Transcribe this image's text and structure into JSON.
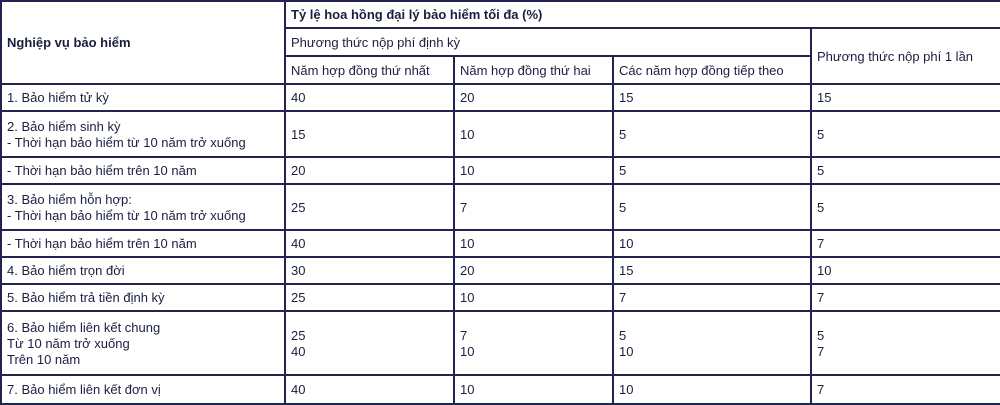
{
  "header": {
    "col_business": "Nghiệp vụ bảo hiểm",
    "col_rate": "Tỷ lệ hoa hồng đại lý bảo hiểm tối đa (%)",
    "periodic": "Phương thức nộp phí định kỳ",
    "single": "Phương thức nộp phí 1 lần",
    "year1": "Năm hợp đồng thứ nhất",
    "year2": "Năm hợp đồng thứ hai",
    "later": "Các năm hợp đồng tiếp theo"
  },
  "rows": [
    {
      "label": "1. Bảo hiểm tử kỳ",
      "y1": "40",
      "y2": "20",
      "later": "15",
      "single": "15"
    },
    {
      "label": "2. Bảo hiểm sinh kỳ\n- Thời hạn bảo hiểm từ 10 năm trở xuống",
      "y1": "15",
      "y2": "10",
      "later": "5",
      "single": "5"
    },
    {
      "label": "- Thời hạn bảo hiểm trên 10 năm",
      "y1": "20",
      "y2": "10",
      "later": "5",
      "single": "5"
    },
    {
      "label": "3. Bảo hiểm hỗn hợp:\n- Thời hạn bảo hiểm từ 10 năm trở xuống",
      "y1": "25",
      "y2": "7",
      "later": "5",
      "single": "5"
    },
    {
      "label": "- Thời hạn bảo hiểm trên 10 năm",
      "y1": "40",
      "y2": "10",
      "later": "10",
      "single": "7"
    },
    {
      "label": "4. Bảo hiểm trọn đời",
      "y1": "30",
      "y2": "20",
      "later": "15",
      "single": "10"
    },
    {
      "label": "5. Bảo hiểm trả tiền định kỳ",
      "y1": "25",
      "y2": "10",
      "later": "7",
      "single": "7"
    },
    {
      "label": "6. Bảo hiểm liên kết chung\nTừ 10 năm trở xuống\nTrên 10 năm",
      "y1": "25\n40",
      "y2": "7\n10",
      "later": "5\n10",
      "single": "5\n7"
    },
    {
      "label": "7. Bảo hiểm liên kết đơn vị",
      "y1": "40",
      "y2": "10",
      "later": "10",
      "single": "7"
    }
  ]
}
